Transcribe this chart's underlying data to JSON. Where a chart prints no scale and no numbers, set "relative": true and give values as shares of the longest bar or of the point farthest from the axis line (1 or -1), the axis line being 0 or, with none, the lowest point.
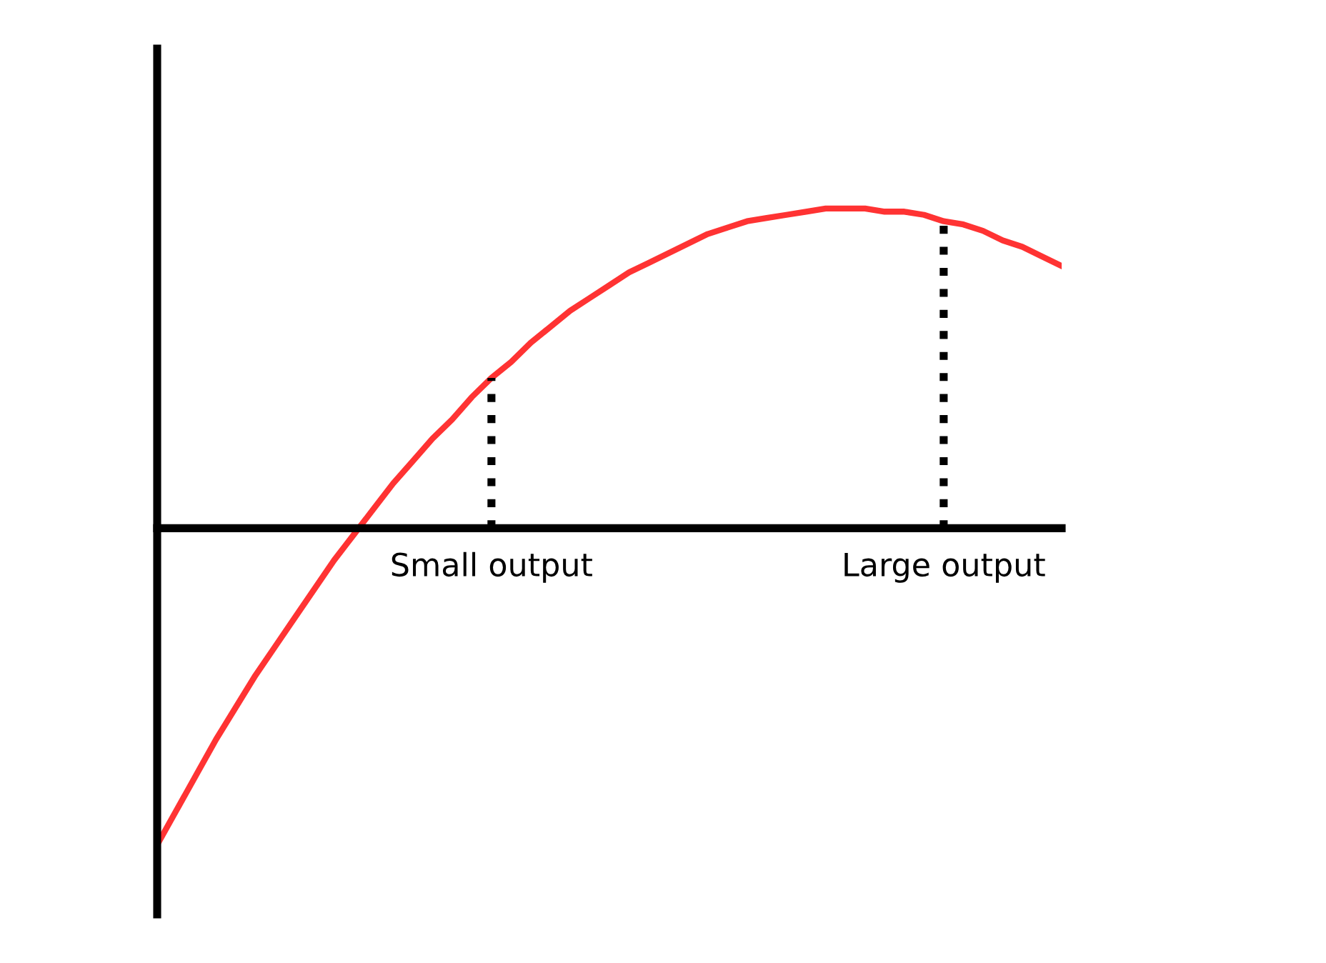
{
  "chart_data": {
    "type": "line",
    "relative": true,
    "tick_labels": "x",
    "grid": false,
    "marker": "none",
    "line_style": "solid",
    "categories": [
      null,
      null,
      null,
      null,
      null,
      null,
      null,
      null,
      null,
      null,
      null,
      null,
      null,
      null,
      null,
      null,
      null,
      "Small output",
      null,
      null,
      null,
      null,
      null,
      null,
      null,
      null,
      null,
      null,
      null,
      null,
      null,
      null,
      null,
      null,
      null,
      null,
      null,
      null,
      null,
      null,
      "Large output",
      null,
      null,
      null,
      null,
      null,
      null
    ],
    "series": [
      {
        "color": "#ff3333",
        "values": [
          -0.99,
          -0.88,
          -0.77,
          -0.66,
          -0.56,
          -0.46,
          -0.37,
          -0.28,
          -0.19,
          -0.1,
          -0.02,
          0.06,
          0.14,
          0.21,
          0.28,
          0.34,
          0.41,
          0.47,
          0.52,
          0.58,
          0.63,
          0.68,
          0.72,
          0.76,
          0.8,
          0.83,
          0.86,
          0.89,
          0.92,
          0.94,
          0.96,
          0.97,
          0.98,
          0.99,
          1.0,
          1.0,
          1.0,
          0.99,
          0.99,
          0.98,
          0.96,
          0.95,
          0.93,
          0.9,
          0.88,
          0.85,
          0.82
        ]
      }
    ],
    "ref_lines": [
      {
        "axis": "x",
        "value": "Small output",
        "color": "#000000",
        "line_style": "dotted"
      },
      {
        "axis": "x",
        "value": "Large output",
        "color": "#000000",
        "line_style": "dotted"
      }
    ]
  }
}
